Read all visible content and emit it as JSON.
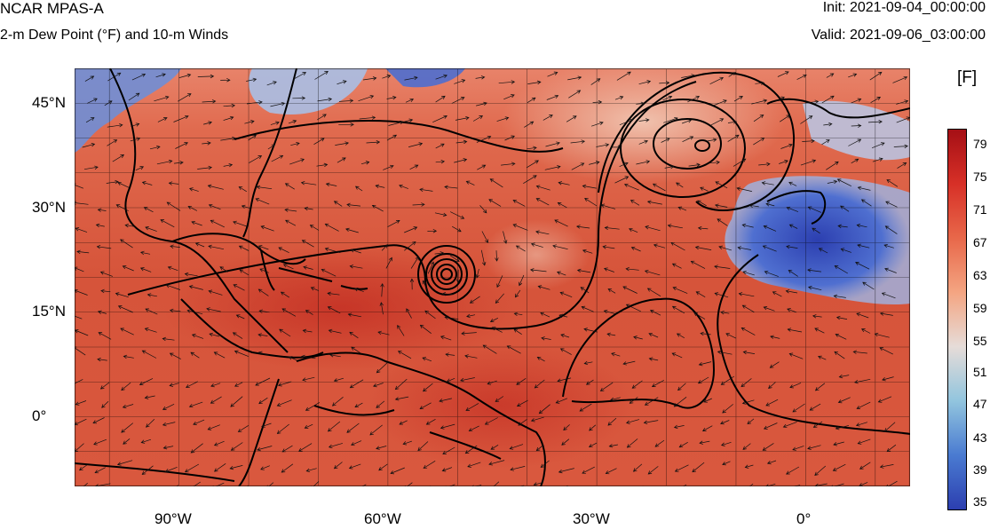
{
  "header": {
    "title": "NCAR MPAS-A",
    "subtitle": "2-m Dew Point (°F) and 10-m Winds",
    "init": "Init: 2021-09-04_00:00:00",
    "valid": "Valid: 2021-09-06_03:00:00"
  },
  "map": {
    "lat_range": [
      -10,
      50
    ],
    "lon_range": [
      -105,
      15
    ],
    "lat_ticks": [
      "45°N",
      "30°N",
      "15°N",
      "0°"
    ],
    "lon_ticks": [
      "90°W",
      "60°W",
      "30°W",
      "0°"
    ],
    "gridlines": true
  },
  "colorbar": {
    "unit": "[F]",
    "labels": [
      "79",
      "75",
      "71",
      "67",
      "63",
      "59",
      "55",
      "51",
      "47",
      "43",
      "39",
      "35"
    ],
    "colors": {
      "dark_red": "#a50f15",
      "red": "#d73027",
      "orange_red": "#e8684a",
      "salmon": "#f4a582",
      "neutral": "#e6dcd8",
      "light_blue": "#92c5de",
      "blue": "#4a7bd1",
      "dark_blue": "#2c3fb0"
    }
  }
}
